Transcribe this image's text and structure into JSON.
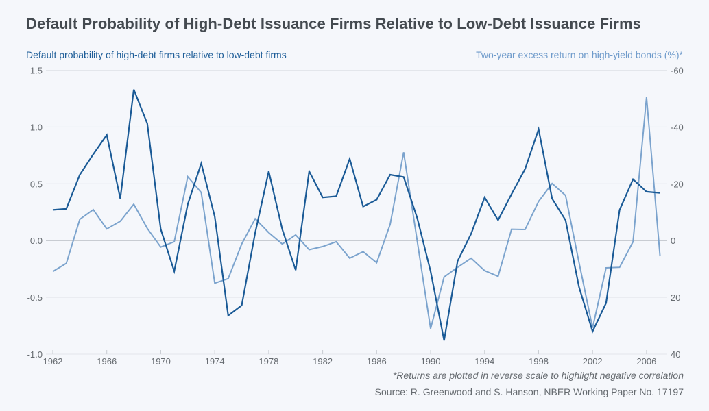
{
  "chart_data": {
    "type": "line",
    "title": "Default Probability of High-Debt Issuance Firms Relative to Low-Debt Issuance Firms",
    "left_axis_title": "Default probability of high-debt firms relative to low-debt firms",
    "right_axis_title": "Two-year excess return on high-yield bonds (%)*",
    "footnote": "*Returns are plotted in reverse scale to highlight negative correlation",
    "source": "Source: R. Greenwood and S. Hanson, NBER Working Paper No. 17197",
    "xlabel": "",
    "x_ticks": [
      "1962",
      "1966",
      "1970",
      "1974",
      "1978",
      "1982",
      "1986",
      "1990",
      "1994",
      "1998",
      "2002",
      "2006"
    ],
    "x_range": [
      1962,
      2007
    ],
    "y_left": {
      "range": [
        -1.0,
        1.5
      ],
      "ticks": [
        "1.5",
        "1.0",
        "0.5",
        "0.0",
        "-0.5",
        "-1.0"
      ],
      "tick_values": [
        1.5,
        1.0,
        0.5,
        0.0,
        -0.5,
        -1.0
      ]
    },
    "y_right": {
      "range": [
        40,
        -60
      ],
      "reversed": true,
      "ticks": [
        "-60",
        "-40",
        "-20",
        "0",
        "20",
        "40"
      ],
      "tick_values": [
        -60,
        -40,
        -20,
        0,
        20,
        40
      ]
    },
    "grid": true,
    "x": [
      1962,
      1963,
      1964,
      1965,
      1966,
      1967,
      1968,
      1969,
      1970,
      1971,
      1972,
      1973,
      1974,
      1975,
      1976,
      1977,
      1978,
      1979,
      1980,
      1981,
      1982,
      1983,
      1984,
      1985,
      1986,
      1987,
      1988,
      1989,
      1990,
      1991,
      1992,
      1993,
      1994,
      1995,
      1996,
      1997,
      1998,
      1999,
      2000,
      2001,
      2002,
      2003,
      2004,
      2005,
      2006,
      2007
    ],
    "series": [
      {
        "name": "Default probability of high-debt firms relative to low-debt firms",
        "axis": "left",
        "color": "#1a5a96",
        "values": [
          0.27,
          0.28,
          0.58,
          0.76,
          0.93,
          0.37,
          1.33,
          1.03,
          0.1,
          -0.27,
          0.32,
          0.68,
          0.21,
          -0.66,
          -0.57,
          0.07,
          0.61,
          0.1,
          -0.26,
          0.61,
          0.38,
          0.39,
          0.72,
          0.3,
          0.36,
          0.58,
          0.56,
          0.2,
          -0.27,
          -0.88,
          -0.18,
          0.06,
          0.38,
          0.18,
          0.41,
          0.63,
          0.98,
          0.37,
          0.18,
          -0.41,
          -0.8,
          -0.55,
          0.27,
          0.54,
          0.43,
          0.42
        ]
      },
      {
        "name": "Two-year excess return on high-yield bonds (%)",
        "axis": "right",
        "color": "#7ba3cd",
        "values": [
          10.9,
          8.0,
          -7.5,
          -10.9,
          -4.1,
          -6.8,
          -12.8,
          -4.3,
          2.3,
          0.4,
          -22.5,
          -16.9,
          15.0,
          13.4,
          1.2,
          -7.7,
          -2.8,
          1.2,
          -2.0,
          3.2,
          2.1,
          0.4,
          6.2,
          3.9,
          7.8,
          -5.7,
          -31.1,
          0.0,
          31.0,
          12.8,
          9.4,
          6.2,
          10.6,
          12.6,
          -4.0,
          -3.9,
          -13.8,
          -20.1,
          -15.9,
          7.8,
          30.7,
          9.6,
          9.4,
          0.4,
          -50.5,
          5.5
        ]
      }
    ]
  }
}
